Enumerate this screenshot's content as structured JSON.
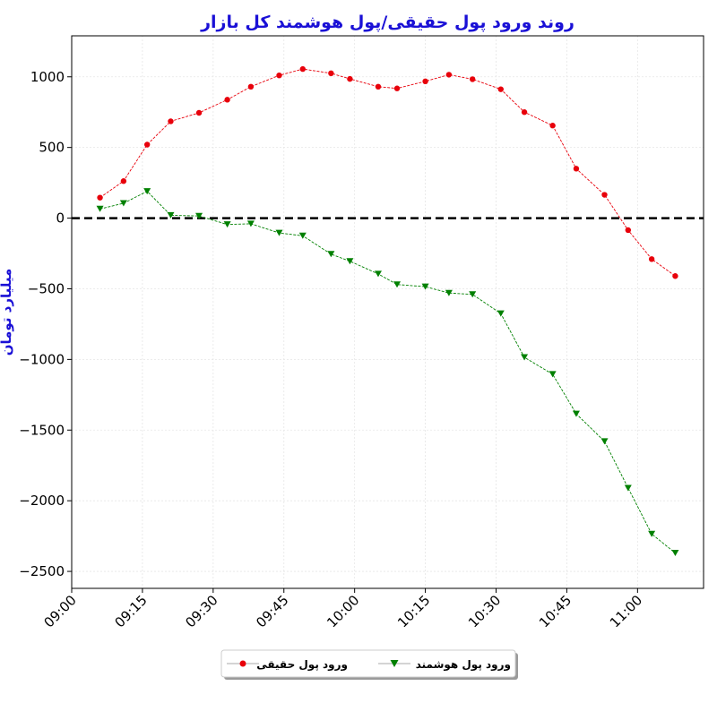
{
  "chart_data": {
    "type": "line",
    "title": "روند ورود پول حقیقی/پول هوشمند کل بازار",
    "xlabel": "",
    "ylabel": "میلیارد تومان",
    "x_tick_labels": [
      "09:00",
      "09:15",
      "09:30",
      "09:45",
      "10:00",
      "10:15",
      "10:30",
      "10:45",
      "11:00"
    ],
    "y_tick_labels": [
      "1000",
      "500",
      "0",
      "−500",
      "−1000",
      "−1500",
      "−2000",
      "−2500"
    ],
    "y_ticks": [
      1000,
      500,
      0,
      -500,
      -1000,
      -1500,
      -2000,
      -2500
    ],
    "xlim": [
      "09:00",
      "11:14"
    ],
    "ylim": [
      -2620,
      1290
    ],
    "grid": true,
    "legend_position": "bottom-center",
    "reference_line": {
      "y": 0,
      "style": "dashed",
      "color": "#000000"
    },
    "x": [
      "09:06",
      "09:11",
      "09:16",
      "09:21",
      "09:27",
      "09:33",
      "09:38",
      "09:44",
      "09:49",
      "09:55",
      "09:59",
      "10:05",
      "10:09",
      "10:15",
      "10:20",
      "10:25",
      "10:31",
      "10:36",
      "10:42",
      "10:47",
      "10:53",
      "10:58",
      "11:03",
      "11:08"
    ],
    "series": [
      {
        "name": "ورود پول حقیقی",
        "color": "#e8000b",
        "marker": "circle",
        "values": [
          145,
          262,
          520,
          685,
          745,
          838,
          930,
          1010,
          1055,
          1025,
          985,
          930,
          918,
          968,
          1015,
          983,
          912,
          750,
          655,
          350,
          165,
          -85,
          -290,
          -410
        ]
      },
      {
        "name": "ورود پول هوشمند",
        "color": "#008000",
        "marker": "triangle-down",
        "values": [
          65,
          105,
          190,
          20,
          15,
          -45,
          -40,
          -105,
          -125,
          -255,
          -305,
          -395,
          -470,
          -485,
          -530,
          -540,
          -675,
          -985,
          -1105,
          -1385,
          -1580,
          -1910,
          -2235,
          -2370
        ]
      }
    ]
  }
}
